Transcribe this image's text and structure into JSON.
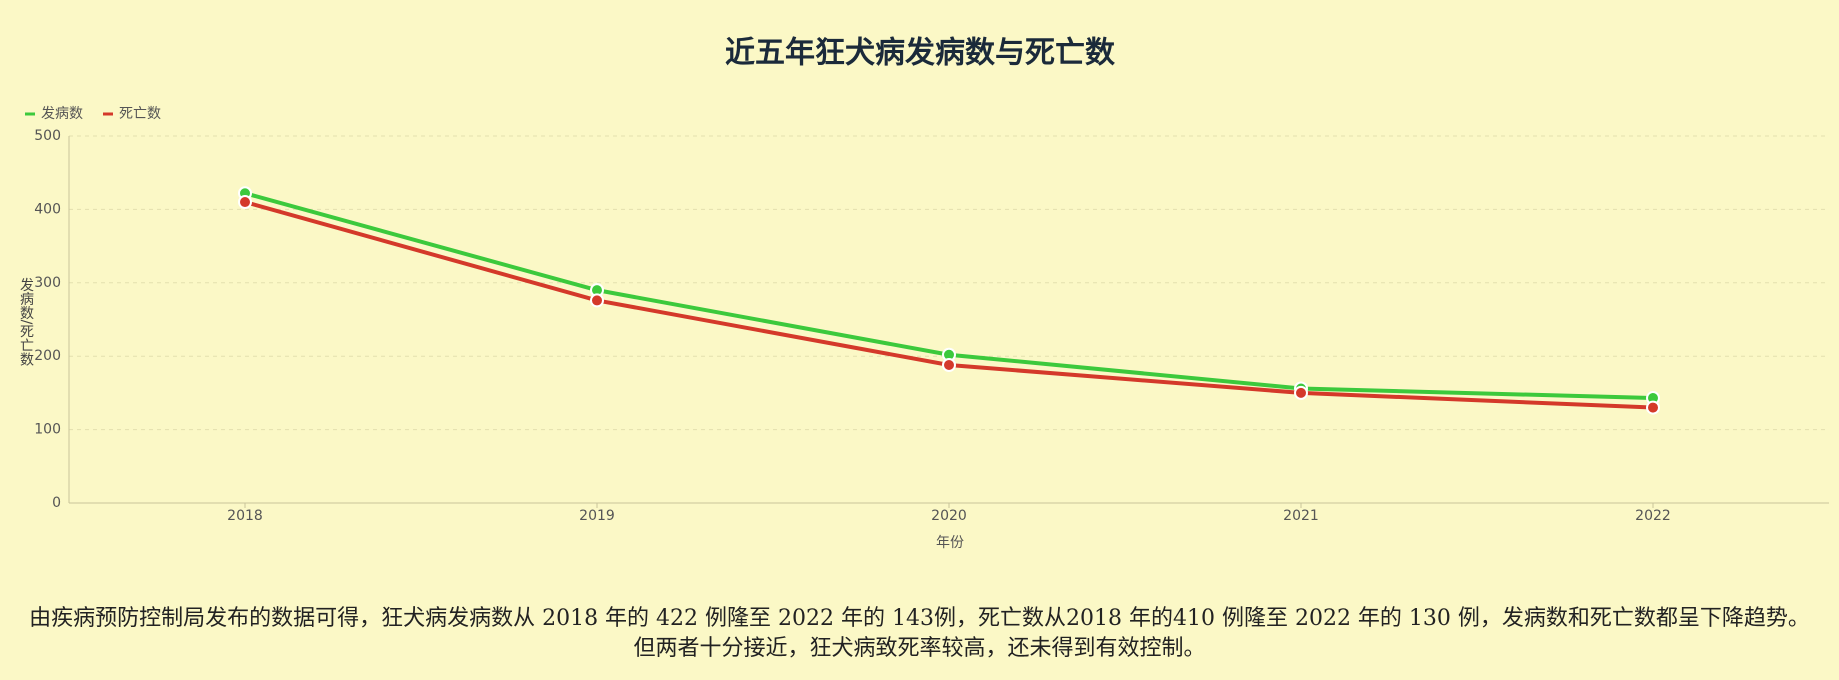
{
  "chart_data": {
    "type": "line",
    "title": "近五年狂犬病发病数与死亡数",
    "x_label": "年份",
    "y_label": "发病数/死亡数",
    "categories": [
      "2018",
      "2019",
      "2020",
      "2021",
      "2022"
    ],
    "series": [
      {
        "name": "发病数",
        "color": "#3cc93c",
        "values": [
          422,
          290,
          202,
          156,
          143
        ]
      },
      {
        "name": "死亡数",
        "color": "#d4392a",
        "values": [
          410,
          276,
          188,
          150,
          130
        ]
      }
    ],
    "ylim": [
      0,
      500
    ],
    "yticks": [
      0,
      100,
      200,
      300,
      400,
      500
    ],
    "grid": true,
    "legend": "top-left"
  },
  "description": "由疾病预防控制局发布的数据可得，狂犬病发病数从 2018 年的 422 例隆至 2022 年的 143例，死亡数从2018 年的410 例隆至 2022 年的 130 例，发病数和死亡数都呈下降趋势。但两者十分接近，狂犬病致死率较高，还未得到有效控制。"
}
